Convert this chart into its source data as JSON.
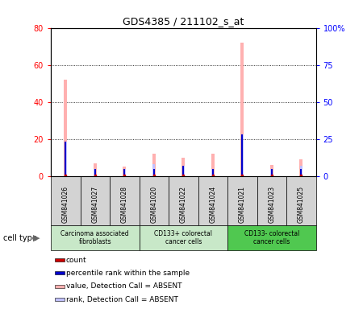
{
  "title": "GDS4385 / 211102_s_at",
  "samples": [
    "GSM841026",
    "GSM841027",
    "GSM841028",
    "GSM841020",
    "GSM841022",
    "GSM841024",
    "GSM841021",
    "GSM841023",
    "GSM841025"
  ],
  "count": [
    0,
    0,
    0,
    0,
    0,
    0,
    0,
    0,
    0
  ],
  "percentile_rank": [
    23,
    5,
    5,
    5,
    7,
    5,
    28,
    5,
    5
  ],
  "value_absent": [
    52,
    7,
    5,
    12,
    10,
    12,
    72,
    6,
    9
  ],
  "rank_absent": [
    23,
    5,
    5,
    8,
    7,
    5,
    28,
    5,
    7
  ],
  "ylim_left": [
    0,
    80
  ],
  "ylim_right": [
    0,
    100
  ],
  "yticks_left": [
    0,
    20,
    40,
    60,
    80
  ],
  "yticks_right": [
    0,
    25,
    50,
    75,
    100
  ],
  "yticklabels_right": [
    "0",
    "25",
    "50",
    "75",
    "100%"
  ],
  "groups": [
    {
      "label": "Carcinoma associated\nfibroblasts",
      "start": 0,
      "end": 3,
      "color": "#c8e8c8"
    },
    {
      "label": "CD133+ colorectal\ncancer cells",
      "start": 3,
      "end": 6,
      "color": "#c8e8c8"
    },
    {
      "label": "CD133- colorectal\ncancer cells",
      "start": 6,
      "end": 9,
      "color": "#50c850"
    }
  ],
  "legend_items": [
    {
      "color": "#cc0000",
      "label": "count"
    },
    {
      "color": "#0000cc",
      "label": "percentile rank within the sample"
    },
    {
      "color": "#ffb0b0",
      "label": "value, Detection Call = ABSENT"
    },
    {
      "color": "#c0c0ff",
      "label": "rank, Detection Call = ABSENT"
    }
  ],
  "cell_type_label": "cell type",
  "background_color": "#ffffff",
  "sample_box_color": "#d3d3d3"
}
